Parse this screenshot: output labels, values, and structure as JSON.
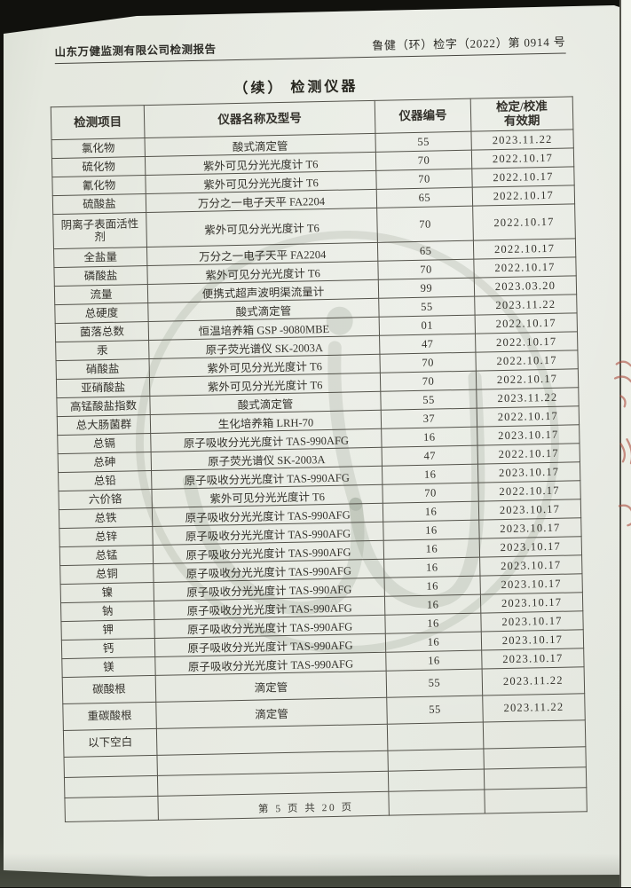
{
  "document": {
    "header": {
      "left": "山东万健监测有限公司检测报告",
      "right": "鲁健（环）检字（2022）第 0914 号"
    },
    "title": "（续） 检测仪器",
    "footer": "第 5 页 共 20 页"
  },
  "table": {
    "headers": {
      "item": "检测项目",
      "instrument": "仪器名称及型号",
      "number": "仪器编号",
      "validity_line1": "检定/校准",
      "validity_line2": "有效期"
    },
    "rows": [
      {
        "item": "氯化物",
        "instrument": "酸式滴定管",
        "number": "55",
        "validity": "2023.11.22"
      },
      {
        "item": "硫化物",
        "instrument": "紫外可见分光光度计 T6",
        "number": "70",
        "validity": "2022.10.17"
      },
      {
        "item": "氰化物",
        "instrument": "紫外可见分光光度计 T6",
        "number": "70",
        "validity": "2022.10.17"
      },
      {
        "item": "硫酸盐",
        "instrument": "万分之一电子天平 FA2204",
        "number": "65",
        "validity": "2022.10.17"
      },
      {
        "item": "阴离子表面活性剂",
        "instrument": "紫外可见分光光度计 T6",
        "number": "70",
        "validity": "2022.10.17"
      },
      {
        "item": "全盐量",
        "instrument": "万分之一电子天平 FA2204",
        "number": "65",
        "validity": "2022.10.17"
      },
      {
        "item": "磷酸盐",
        "instrument": "紫外可见分光光度计 T6",
        "number": "70",
        "validity": "2022.10.17"
      },
      {
        "item": "流量",
        "instrument": "便携式超声波明渠流量计",
        "number": "99",
        "validity": "2023.03.20"
      },
      {
        "item": "总硬度",
        "instrument": "酸式滴定管",
        "number": "55",
        "validity": "2023.11.22"
      },
      {
        "item": "菌落总数",
        "instrument": "恒温培养箱 GSP -9080MBE",
        "number": "01",
        "validity": "2022.10.17"
      },
      {
        "item": "汞",
        "instrument": "原子荧光谱仪 SK-2003A",
        "number": "47",
        "validity": "2022.10.17"
      },
      {
        "item": "硝酸盐",
        "instrument": "紫外可见分光光度计 T6",
        "number": "70",
        "validity": "2022.10.17"
      },
      {
        "item": "亚硝酸盐",
        "instrument": "紫外可见分光光度计 T6",
        "number": "70",
        "validity": "2022.10.17"
      },
      {
        "item": "高锰酸盐指数",
        "instrument": "酸式滴定管",
        "number": "55",
        "validity": "2023.11.22"
      },
      {
        "item": "总大肠菌群",
        "instrument": "生化培养箱 LRH-70",
        "number": "37",
        "validity": "2022.10.17"
      },
      {
        "item": "总镉",
        "instrument": "原子吸收分光光度计 TAS-990AFG",
        "number": "16",
        "validity": "2023.10.17"
      },
      {
        "item": "总砷",
        "instrument": "原子荧光谱仪 SK-2003A",
        "number": "47",
        "validity": "2022.10.17"
      },
      {
        "item": "总铅",
        "instrument": "原子吸收分光光度计 TAS-990AFG",
        "number": "16",
        "validity": "2023.10.17"
      },
      {
        "item": "六价铬",
        "instrument": "紫外可见分光光度计 T6",
        "number": "70",
        "validity": "2022.10.17"
      },
      {
        "item": "总铁",
        "instrument": "原子吸收分光光度计 TAS-990AFG",
        "number": "16",
        "validity": "2023.10.17"
      },
      {
        "item": "总锌",
        "instrument": "原子吸收分光光度计 TAS-990AFG",
        "number": "16",
        "validity": "2023.10.17"
      },
      {
        "item": "总锰",
        "instrument": "原子吸收分光光度计 TAS-990AFG",
        "number": "16",
        "validity": "2023.10.17"
      },
      {
        "item": "总铜",
        "instrument": "原子吸收分光光度计 TAS-990AFG",
        "number": "16",
        "validity": "2023.10.17"
      },
      {
        "item": "镍",
        "instrument": "原子吸收分光光度计 TAS-990AFG",
        "number": "16",
        "validity": "2023.10.17"
      },
      {
        "item": "钠",
        "instrument": "原子吸收分光光度计 TAS-990AFG",
        "number": "16",
        "validity": "2023.10.17"
      },
      {
        "item": "钾",
        "instrument": "原子吸收分光光度计 TAS-990AFG",
        "number": "16",
        "validity": "2023.10.17"
      },
      {
        "item": "钙",
        "instrument": "原子吸收分光光度计 TAS-990AFG",
        "number": "16",
        "validity": "2023.10.17"
      },
      {
        "item": "镁",
        "instrument": "原子吸收分光光度计 TAS-990AFG",
        "number": "16",
        "validity": "2023.10.17"
      },
      {
        "item": "碳酸根",
        "instrument": "滴定管",
        "number": "55",
        "validity": "2023.11.22"
      },
      {
        "item": "重碳酸根",
        "instrument": "滴定管",
        "number": "55",
        "validity": "2023.11.22"
      },
      {
        "item": "以下空白",
        "instrument": "",
        "number": "",
        "validity": ""
      },
      {
        "item": "",
        "instrument": "",
        "number": "",
        "validity": ""
      },
      {
        "item": "",
        "instrument": "",
        "number": "",
        "validity": ""
      },
      {
        "item": "",
        "instrument": "",
        "number": "",
        "validity": ""
      }
    ]
  },
  "colors": {
    "paper": "#e7eae2",
    "ink": "#33312b",
    "table_line": "#53524a",
    "watermark": "#6f7a68",
    "edge_mark": "#ad5143"
  },
  "watermark": {
    "shape": "circled-logo"
  }
}
